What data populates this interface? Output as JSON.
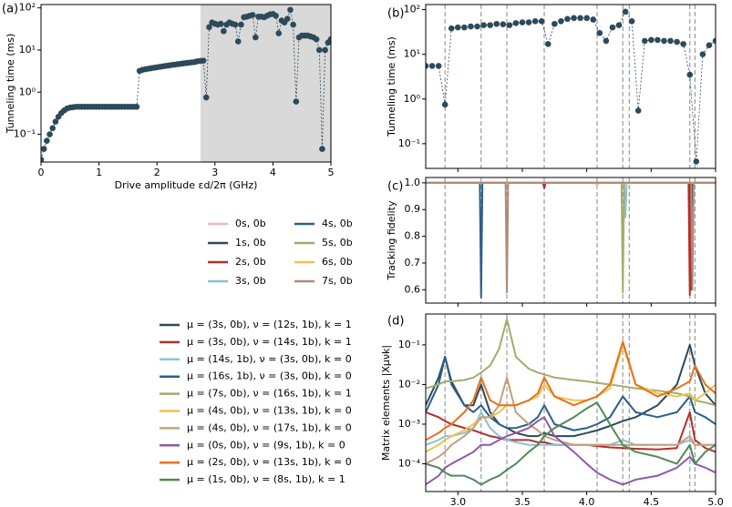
{
  "chart_data": [
    {
      "type": "line",
      "panel_label": "(a)",
      "xlabel": "Drive amplitude εd/2π (GHz)",
      "ylabel": "Tunneling time (ms)",
      "log_y": true,
      "color": "#2d4a5a",
      "markers": true,
      "line_style": "dashed",
      "shaded_range": [
        2.75,
        5
      ],
      "xlim": [
        0,
        5
      ],
      "xticks": [
        0,
        1,
        2,
        3,
        4,
        5
      ],
      "ylim": [
        0.022,
        120
      ],
      "yticks": [
        {
          "value": 0.1,
          "label": "10⁻¹"
        },
        {
          "value": 1,
          "label": "10⁰"
        },
        {
          "value": 10,
          "label": "10¹"
        },
        {
          "value": 100,
          "label": "10²"
        }
      ],
      "x": [
        0,
        0.05,
        0.1,
        0.15,
        0.2,
        0.25,
        0.3,
        0.35,
        0.4,
        0.45,
        0.5,
        0.55,
        0.6,
        0.65,
        0.7,
        0.75,
        0.8,
        0.85,
        0.9,
        0.95,
        1,
        1.05,
        1.1,
        1.15,
        1.2,
        1.25,
        1.3,
        1.35,
        1.4,
        1.45,
        1.5,
        1.55,
        1.6,
        1.65,
        1.7,
        1.75,
        1.8,
        1.85,
        1.9,
        1.95,
        2,
        2.05,
        2.1,
        2.15,
        2.2,
        2.25,
        2.3,
        2.35,
        2.4,
        2.45,
        2.5,
        2.55,
        2.6,
        2.65,
        2.7,
        2.75,
        2.8,
        2.85,
        2.9,
        2.95,
        3,
        3.05,
        3.1,
        3.15,
        3.2,
        3.25,
        3.3,
        3.35,
        3.4,
        3.45,
        3.5,
        3.55,
        3.6,
        3.65,
        3.7,
        3.75,
        3.8,
        3.85,
        3.9,
        3.95,
        4,
        4.05,
        4.1,
        4.15,
        4.2,
        4.25,
        4.3,
        4.35,
        4.4,
        4.45,
        4.5,
        4.55,
        4.6,
        4.65,
        4.7,
        4.75,
        4.8,
        4.85,
        4.9,
        4.95,
        5
      ],
      "values": [
        0.025,
        0.045,
        0.07,
        0.1,
        0.14,
        0.2,
        0.26,
        0.32,
        0.37,
        0.41,
        0.43,
        0.44,
        0.45,
        0.45,
        0.45,
        0.45,
        0.45,
        0.45,
        0.45,
        0.45,
        0.45,
        0.45,
        0.45,
        0.45,
        0.45,
        0.45,
        0.45,
        0.45,
        0.45,
        0.45,
        0.45,
        0.45,
        0.45,
        0.45,
        3.2,
        3.4,
        3.5,
        3.6,
        3.7,
        3.8,
        3.9,
        4.0,
        4.1,
        4.2,
        4.3,
        4.4,
        4.5,
        4.6,
        4.7,
        4.8,
        4.9,
        5.0,
        5.1,
        5.2,
        5.4,
        5.5,
        5.6,
        0.75,
        35,
        45,
        42,
        40,
        42,
        28,
        40,
        45,
        42,
        40,
        16,
        40,
        60,
        62,
        65,
        68,
        20,
        62,
        62,
        60,
        65,
        70,
        72,
        65,
        25,
        50,
        45,
        55,
        90,
        40,
        0.6,
        20,
        22,
        22,
        22,
        21,
        20,
        18,
        10,
        0.045,
        10,
        15,
        18
      ]
    },
    {
      "type": "line",
      "panel_label": "(b)",
      "ylabel": "Tunneling time (ms)",
      "log_y": true,
      "color": "#2d4a5a",
      "markers": true,
      "line_style": "dashed",
      "vlines": [
        2.9,
        3.18,
        3.38,
        3.67,
        4.08,
        4.28,
        4.33,
        4.8,
        4.84
      ],
      "xlim": [
        2.75,
        5
      ],
      "xticks": [
        3,
        3.5,
        4,
        4.5,
        5
      ],
      "xticklabels": false,
      "ylim": [
        0.028,
        130
      ],
      "yticks": [
        {
          "value": 0.1,
          "label": "10⁻¹"
        },
        {
          "value": 1,
          "label": "10⁰"
        },
        {
          "value": 10,
          "label": "10¹"
        },
        {
          "value": 100,
          "label": "10²"
        }
      ],
      "x": [
        2.75,
        2.8,
        2.85,
        2.9,
        2.95,
        3,
        3.05,
        3.1,
        3.15,
        3.2,
        3.25,
        3.3,
        3.35,
        3.4,
        3.45,
        3.5,
        3.55,
        3.6,
        3.65,
        3.7,
        3.75,
        3.8,
        3.85,
        3.9,
        3.95,
        4,
        4.05,
        4.1,
        4.15,
        4.2,
        4.25,
        4.3,
        4.35,
        4.4,
        4.45,
        4.5,
        4.55,
        4.6,
        4.65,
        4.7,
        4.75,
        4.8,
        4.85,
        4.9,
        4.95,
        5
      ],
      "values": [
        5.5,
        5.5,
        5.5,
        0.75,
        38,
        40,
        40,
        42,
        42,
        45,
        45,
        48,
        47,
        45,
        50,
        52,
        52,
        55,
        55,
        17,
        48,
        55,
        62,
        65,
        65,
        65,
        60,
        30,
        20,
        40,
        45,
        90,
        55,
        0.55,
        20,
        21,
        21,
        20,
        20,
        19,
        17,
        3.5,
        0.04,
        10,
        16,
        20
      ]
    },
    {
      "type": "line",
      "panel_label": "(c)",
      "ylabel": "Tracking fidelity",
      "log_y": false,
      "vlines": [
        2.9,
        3.18,
        3.38,
        3.67,
        4.08,
        4.28,
        4.33,
        4.8,
        4.84
      ],
      "xlim": [
        2.75,
        5
      ],
      "xticks": [
        3,
        3.5,
        4,
        4.5,
        5
      ],
      "xticklabels": false,
      "ylim": [
        0.55,
        1.02
      ],
      "yticks": [
        0.6,
        0.7,
        0.8,
        0.9,
        {
          "value": 1,
          "label": "1.0"
        }
      ],
      "x": [
        2.75,
        3.17,
        3.18,
        3.19,
        3.37,
        3.38,
        3.39,
        3.66,
        3.67,
        3.68,
        4.07,
        4.08,
        4.09,
        4.27,
        4.28,
        4.29,
        4.3,
        4.31,
        4.79,
        4.8,
        4.81,
        4.82,
        4.83,
        5
      ],
      "series": [
        {
          "name": "0s, 0b",
          "color": "#f4b6c2",
          "values": [
            1,
            1,
            1,
            1,
            1,
            1,
            1,
            1,
            1,
            1,
            1,
            1,
            1,
            1,
            1,
            1,
            1,
            1,
            1,
            1,
            1,
            1,
            1,
            1
          ]
        },
        {
          "name": "1s, 0b",
          "color": "#2d4a5a",
          "values": [
            1,
            1,
            1,
            1,
            1,
            1,
            1,
            1,
            1,
            1,
            1,
            1,
            1,
            1,
            1,
            1,
            1,
            1,
            1,
            1,
            0.6,
            1,
            1,
            1
          ]
        },
        {
          "name": "2s, 0b",
          "color": "#b2302c",
          "values": [
            1,
            1,
            1,
            1,
            1,
            1,
            1,
            1,
            0.98,
            1,
            1,
            1,
            1,
            1,
            1,
            1,
            1,
            1,
            1,
            0.58,
            1,
            1,
            1,
            1
          ]
        },
        {
          "name": "3s, 0b",
          "color": "#8fbfdc",
          "values": [
            1,
            1,
            1,
            1,
            1,
            1,
            1,
            1,
            1,
            1,
            1,
            1,
            1,
            1,
            1,
            1,
            0.87,
            1,
            1,
            1,
            1,
            1,
            1,
            1
          ]
        },
        {
          "name": "4s, 0b",
          "color": "#2b5f8a",
          "values": [
            1,
            1,
            0.57,
            1,
            1,
            1,
            1,
            1,
            1,
            1,
            1,
            1,
            1,
            1,
            1,
            1,
            1,
            1,
            1,
            1,
            1,
            1,
            1,
            1
          ]
        },
        {
          "name": "5s, 0b",
          "color": "#a3ad6a",
          "values": [
            1,
            1,
            1,
            1,
            1,
            1,
            1,
            1,
            1,
            1,
            1,
            1,
            1,
            1,
            0.59,
            1,
            1,
            1,
            1,
            1,
            1,
            1,
            1,
            1
          ]
        },
        {
          "name": "6s, 0b",
          "color": "#f2c14e",
          "values": [
            1,
            1,
            1,
            1,
            1,
            1,
            1,
            1,
            1,
            1,
            1,
            0.99,
            1,
            1,
            1,
            1,
            1,
            1,
            1,
            1,
            1,
            1,
            1,
            1
          ]
        },
        {
          "name": "7s, 0b",
          "color": "#b08a78",
          "values": [
            1,
            1,
            1,
            1,
            1,
            0.59,
            1,
            1,
            1,
            1,
            1,
            1,
            1,
            1,
            1,
            1,
            1,
            1,
            1,
            1,
            1,
            0.6,
            1,
            1
          ]
        }
      ]
    },
    {
      "type": "line",
      "panel_label": "(d)",
      "xlabel": "Drive amplitude εd/2π (GHz)",
      "ylabel": "Matrix elements |Xμνk|",
      "log_y": true,
      "vlines": [
        2.9,
        3.18,
        3.38,
        3.67,
        4.08,
        4.28,
        4.33,
        4.8,
        4.84
      ],
      "xlim": [
        2.75,
        5
      ],
      "xticks": [
        {
          "value": 3,
          "label": "3.0"
        },
        3.5,
        {
          "value": 4,
          "label": "4.0"
        },
        4.5,
        {
          "value": 5,
          "label": "5.0"
        }
      ],
      "ylim": [
        2e-05,
        0.6
      ],
      "yticks": [
        {
          "value": 0.0001,
          "label": "10⁻⁴"
        },
        {
          "value": 0.001,
          "label": "10⁻³"
        },
        {
          "value": 0.01,
          "label": "10⁻²"
        },
        {
          "value": 0.1,
          "label": "10⁻¹"
        }
      ],
      "x": [
        2.75,
        2.85,
        2.9,
        2.95,
        3.05,
        3.12,
        3.18,
        3.25,
        3.32,
        3.38,
        3.45,
        3.55,
        3.62,
        3.67,
        3.75,
        3.9,
        4,
        4.08,
        4.18,
        4.28,
        4.38,
        4.55,
        4.7,
        4.8,
        4.84,
        4.92,
        5
      ],
      "series": [
        {
          "name": "μ = (3s, 0b), ν = (12s, 1b), k = 1",
          "color": "#2d4a5a",
          "values": [
            0.003,
            0.015,
            0.05,
            0.012,
            0.003,
            0.003,
            0.01,
            0.002,
            0.001,
            0.0008,
            0.0006,
            0.0005,
            0.0005,
            0.0006,
            0.0005,
            0.0005,
            0.0006,
            0.0007,
            0.0009,
            0.0012,
            0.0015,
            0.003,
            0.01,
            0.1,
            0.03,
            0.006,
            0.003
          ]
        },
        {
          "name": "μ = (3s, 0b), ν = (14s, 1b), k = 1",
          "color": "#b2302c",
          "values": [
            0.002,
            0.0015,
            0.0012,
            0.001,
            0.0008,
            0.0007,
            0.0006,
            0.0005,
            0.00045,
            0.0004,
            0.0004,
            0.0004,
            0.00035,
            0.00035,
            0.0003,
            0.0003,
            0.0003,
            0.00028,
            0.00026,
            0.00025,
            0.00024,
            0.00023,
            0.00025,
            0.002,
            0.0004,
            0.00025,
            0.0002
          ]
        },
        {
          "name": "μ = (14s, 1b), ν = (3s, 0b), k = 0",
          "color": "#8fbfdc",
          "values": [
            0.0003,
            0.0004,
            0.0005,
            0.0005,
            0.0006,
            0.0008,
            0.002,
            0.0008,
            0.0005,
            0.0004,
            0.00035,
            0.0003,
            0.0003,
            0.0003,
            0.0003,
            0.0003,
            0.0003,
            0.0003,
            0.0003,
            0.0004,
            0.0003,
            0.0003,
            0.0003,
            0.0004,
            0.0003,
            0.0003,
            0.0003
          ]
        },
        {
          "name": "μ = (16s, 1b), ν = (3s, 0b), k = 0",
          "color": "#2b5f8a",
          "values": [
            0.002,
            0.01,
            0.05,
            0.01,
            0.003,
            0.002,
            0.003,
            0.0015,
            0.001,
            0.0008,
            0.0008,
            0.001,
            0.0015,
            0.003,
            0.001,
            0.0007,
            0.0008,
            0.001,
            0.0015,
            0.005,
            0.002,
            0.0015,
            0.002,
            0.005,
            0.002,
            0.0015,
            0.001
          ]
        },
        {
          "name": "μ = (7s, 0b), ν = (16s, 1b), k = 1",
          "color": "#a3ad6a",
          "values": [
            0.008,
            0.01,
            0.012,
            0.012,
            0.013,
            0.015,
            0.02,
            0.03,
            0.08,
            0.45,
            0.05,
            0.025,
            0.02,
            0.018,
            0.015,
            0.013,
            0.012,
            0.011,
            0.01,
            0.009,
            0.008,
            0.007,
            0.006,
            0.005,
            0.004,
            0.0035,
            0.003
          ]
        },
        {
          "name": "μ = (4s, 0b), ν = (13s, 1b), k = 0",
          "color": "#f2c14e",
          "values": [
            0.0002,
            0.0003,
            0.0004,
            0.0005,
            0.0007,
            0.001,
            0.0015,
            0.0015,
            0.002,
            0.003,
            0.003,
            0.004,
            0.005,
            0.01,
            0.005,
            0.004,
            0.004,
            0.005,
            0.008,
            0.1,
            0.01,
            0.006,
            0.005,
            0.006,
            0.004,
            0.006,
            0.01
          ]
        },
        {
          "name": "μ = (4s, 0b), ν = (17s, 1b), k = 0",
          "color": "#c4a07a",
          "values": [
            0.0001,
            0.00015,
            0.0002,
            0.0003,
            0.0005,
            0.0008,
            0.0015,
            0.0015,
            0.003,
            0.015,
            0.002,
            0.001,
            0.0007,
            0.0005,
            0.0004,
            0.0003,
            0.0003,
            0.0003,
            0.0003,
            0.0003,
            0.0003,
            0.0003,
            0.0003,
            0.0005,
            0.0003,
            0.0003,
            0.0003
          ]
        },
        {
          "name": "μ = (0s, 0b), ν = (9s, 1b), k = 0",
          "color": "#8e5aa8",
          "values": [
            3e-05,
            5e-05,
            8e-05,
            0.0001,
            0.00015,
            0.0002,
            0.0003,
            0.0003,
            0.0004,
            0.0005,
            0.0006,
            0.0008,
            0.0012,
            0.0015,
            0.0005,
            0.0002,
            0.0001,
            6e-05,
            4e-05,
            3e-05,
            4e-05,
            5e-05,
            8e-05,
            0.00015,
            0.0001,
            8e-05,
            6e-05
          ]
        },
        {
          "name": "μ = (2s, 0b), ν = (13s, 1b), k = 0",
          "color": "#e8711a",
          "values": [
            0.0004,
            0.0006,
            0.0008,
            0.001,
            0.002,
            0.004,
            0.015,
            0.004,
            0.003,
            0.003,
            0.003,
            0.004,
            0.006,
            0.015,
            0.005,
            0.003,
            0.004,
            0.005,
            0.01,
            0.12,
            0.01,
            0.005,
            0.008,
            0.012,
            0.03,
            0.01,
            0.006
          ]
        },
        {
          "name": "μ = (1s, 0b), ν = (8s, 1b), k = 1",
          "color": "#4f8a56",
          "values": [
            0.0001,
            8e-05,
            6e-05,
            5e-05,
            5e-05,
            4e-05,
            3e-05,
            4e-05,
            5e-05,
            7e-05,
            0.0001,
            0.0002,
            0.0003,
            0.0005,
            0.0008,
            0.0015,
            0.0025,
            0.0035,
            0.001,
            0.0003,
            0.0002,
            0.00015,
            0.0001,
            0.0003,
            0.0001,
            0.0002,
            0.0003
          ]
        }
      ]
    }
  ]
}
